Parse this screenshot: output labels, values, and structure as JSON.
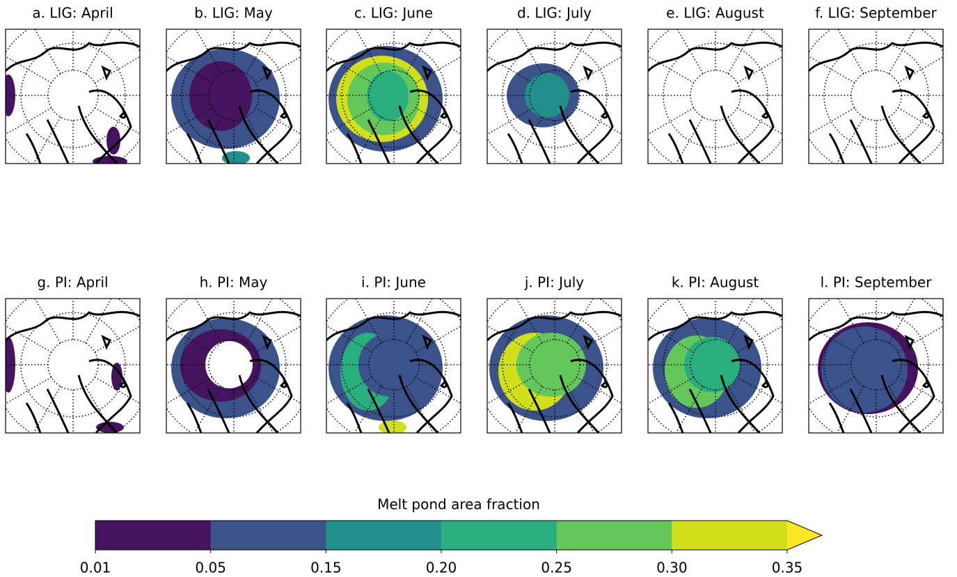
{
  "chart_data": {
    "type": "contour",
    "panels": [
      {
        "title": "a. LIG: April"
      },
      {
        "title": "b. LIG: May"
      },
      {
        "title": "c. LIG: June"
      },
      {
        "title": "d. LIG: July"
      },
      {
        "title": "e. LIG: August"
      },
      {
        "title": "f. LIG: September"
      },
      {
        "title": "g. PI: April"
      },
      {
        "title": "h. PI: May"
      },
      {
        "title": "i. PI: June"
      },
      {
        "title": "j. PI: July"
      },
      {
        "title": "k. PI: August"
      },
      {
        "title": "l. PI: September"
      }
    ],
    "colorbar": {
      "label": "Melt pond area fraction",
      "ticks": [
        0.01,
        0.05,
        0.15,
        {
          "value": 0.2,
          "label": "0.20"
        },
        0.25,
        {
          "value": 0.3,
          "label": "0.30"
        },
        0.35
      ],
      "colors": [
        "#46145f",
        "#3b528b",
        "#21908d",
        "#29ae7f",
        "#63c75b",
        "#d2e01c"
      ],
      "extend_color": "#fde725"
    }
  }
}
